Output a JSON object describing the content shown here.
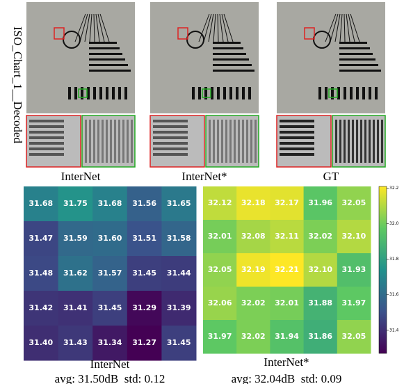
{
  "figure": {
    "row_label": "ISO_Chart_1__Decoded",
    "image_captions": [
      "InterNet",
      "InterNet*",
      "GT"
    ]
  },
  "chart_data": [
    {
      "type": "heatmap",
      "title": "InterNet",
      "subtitle": "avg: 31.50dB  std: 0.12",
      "values": [
        [
          31.68,
          31.75,
          31.68,
          31.56,
          31.65
        ],
        [
          31.47,
          31.59,
          31.6,
          31.51,
          31.58
        ],
        [
          31.48,
          31.62,
          31.57,
          31.45,
          31.44
        ],
        [
          31.42,
          31.41,
          31.45,
          31.29,
          31.39
        ],
        [
          31.4,
          31.43,
          31.34,
          31.27,
          31.45
        ]
      ],
      "value_labels": [
        [
          "31.68",
          "31.75",
          "31.68",
          "31.56",
          "31.65"
        ],
        [
          "31.47",
          "31.59",
          "31.60",
          "31.51",
          "31.58"
        ],
        [
          "31.48",
          "31.62",
          "31.57",
          "31.45",
          "31.44"
        ],
        [
          "31.42",
          "31.41",
          "31.45",
          "31.29",
          "31.39"
        ],
        [
          "31.40",
          "31.43",
          "31.34",
          "31.27",
          "31.45"
        ]
      ]
    },
    {
      "type": "heatmap",
      "title": "InterNet*",
      "subtitle": "avg: 32.04dB  std: 0.09",
      "values": [
        [
          32.12,
          32.18,
          32.17,
          31.96,
          32.05
        ],
        [
          32.01,
          32.08,
          32.11,
          32.02,
          32.1
        ],
        [
          32.05,
          32.19,
          32.21,
          32.1,
          31.93
        ],
        [
          32.06,
          32.02,
          32.01,
          31.88,
          31.97
        ],
        [
          31.97,
          32.02,
          31.94,
          31.86,
          32.05
        ]
      ],
      "value_labels": [
        [
          "32.12",
          "32.18",
          "32.17",
          "31.96",
          "32.05"
        ],
        [
          "32.01",
          "32.08",
          "32.11",
          "32.02",
          "32.10"
        ],
        [
          "32.05",
          "32.19",
          "32.21",
          "32.10",
          "31.93"
        ],
        [
          "32.06",
          "32.02",
          "32.01",
          "31.88",
          "31.97"
        ],
        [
          "31.97",
          "32.02",
          "31.94",
          "31.86",
          "32.05"
        ]
      ]
    }
  ],
  "colorbar": {
    "lim": [
      31.27,
      32.21
    ],
    "ticks": [
      31.4,
      31.6,
      31.8,
      {
        "value": 32,
        "label": "32.0"
      },
      32.2
    ]
  }
}
